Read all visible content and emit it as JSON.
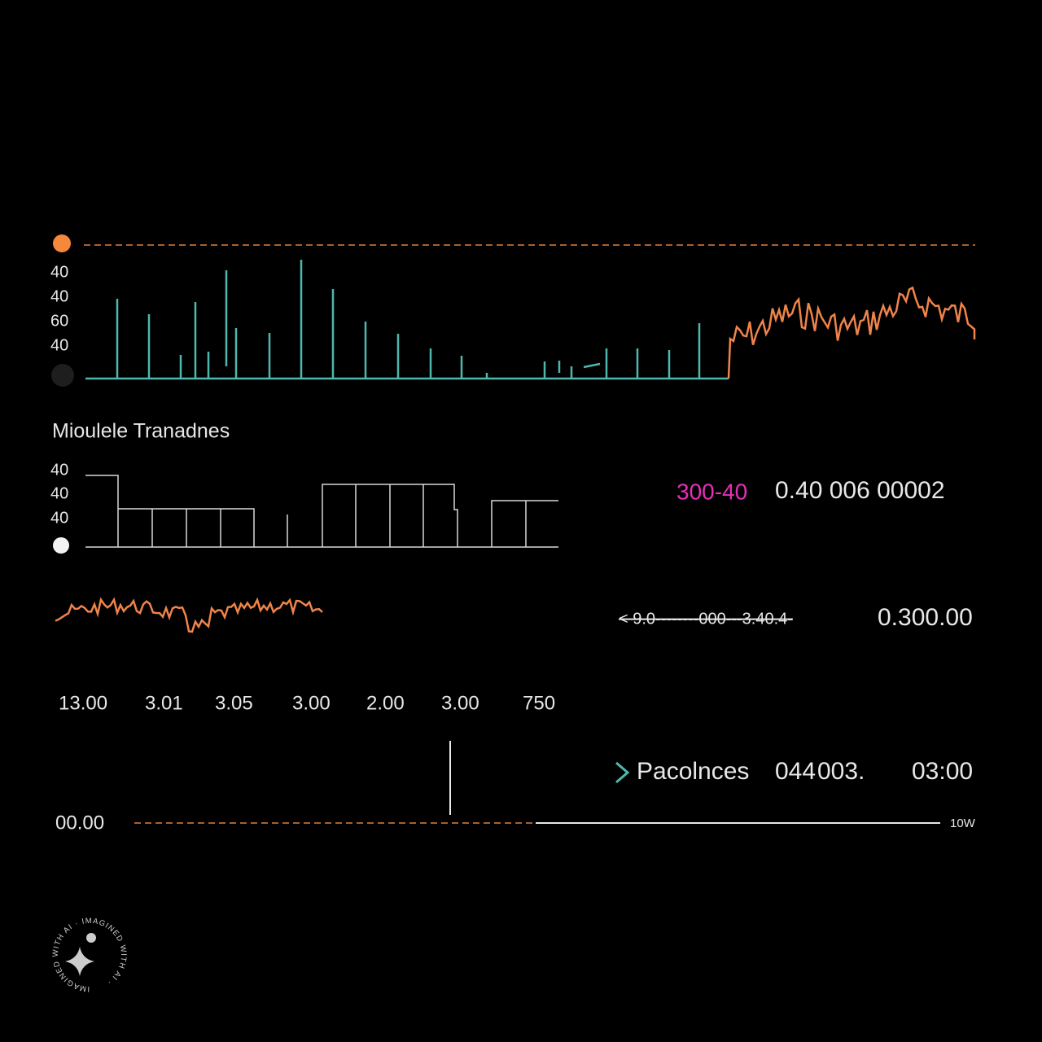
{
  "panel_top": {
    "y_labels": [
      "40",
      "40",
      "60",
      "40"
    ]
  },
  "panel_mid": {
    "title": "Mioulele Tranadnes",
    "y_labels": [
      "40",
      "40",
      "40"
    ]
  },
  "readouts": [
    {
      "highlight": "300-40",
      "text": "0.40  006  00002"
    },
    {
      "text": "< 9.0--------000---3.40.4-",
      "value": "0.300.00"
    }
  ],
  "x_labels": [
    "13.00",
    "3.01",
    "3.05",
    "3.00",
    "2.00",
    "3.00",
    "750"
  ],
  "footer": {
    "label": "Pacolnces",
    "values": [
      "044",
      "003.",
      "03:00"
    ],
    "baseline_label": "00.00",
    "end_label": "10W"
  },
  "watermark": "IMAGINED WITH AI · IMAGINED WITH AI ·"
}
